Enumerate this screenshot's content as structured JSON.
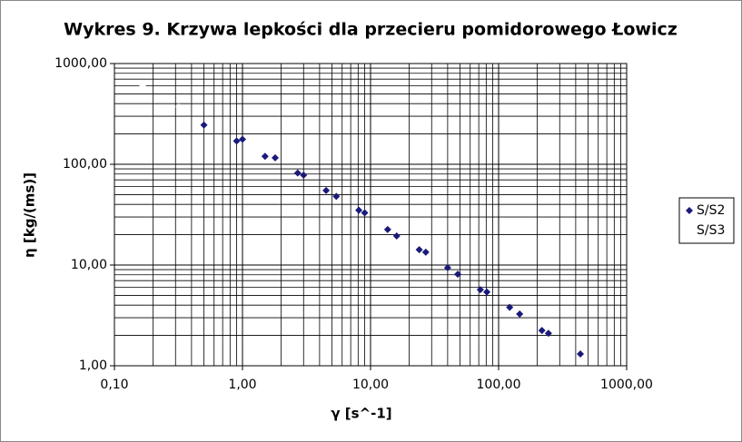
{
  "chart_data": {
    "type": "scatter",
    "title": "Wykres 9. Krzywa lepkości dla przecieru pomidorowego Łowicz",
    "x_label": "γ [s^-1]",
    "y_label": "η [kg/(ms)]",
    "log_x": true,
    "log_y": true,
    "grid": true,
    "minor_grid": true,
    "legend": "right",
    "xlim": [
      0.1,
      1000
    ],
    "ylim": [
      1,
      1000
    ],
    "xticks": [
      {
        "value": 0.1,
        "label": "0,10"
      },
      {
        "value": 1,
        "label": "1,00"
      },
      {
        "value": 10,
        "label": "10,00"
      },
      {
        "value": 100,
        "label": "100,00"
      },
      {
        "value": 1000,
        "label": "1000,00"
      }
    ],
    "yticks": [
      {
        "value": 1,
        "label": "1,00"
      },
      {
        "value": 10,
        "label": "10,00"
      },
      {
        "value": 100,
        "label": "100,00"
      },
      {
        "value": 1000,
        "label": "1000,00"
      }
    ],
    "series": [
      {
        "name": "S/S2",
        "color": "#1a1a7a",
        "x": [
          0.5,
          0.9,
          1.0,
          1.5,
          1.8,
          2.7,
          3.0,
          4.5,
          5.4,
          8.1,
          9.0,
          13.6,
          16,
          24,
          27,
          40,
          48,
          72,
          81,
          122,
          146,
          218,
          245,
          435
        ],
        "values": [
          245,
          170,
          177,
          120,
          116,
          82,
          78,
          55,
          48,
          35,
          33,
          22.5,
          19.4,
          14.2,
          13.4,
          9.4,
          8.1,
          5.7,
          5.4,
          3.8,
          3.26,
          2.24,
          2.1,
          1.31
        ]
      },
      {
        "name": "S/S3",
        "color": "#ffffff",
        "x": [
          0.166,
          0.319
        ],
        "values": [
          595,
          370
        ]
      }
    ]
  }
}
